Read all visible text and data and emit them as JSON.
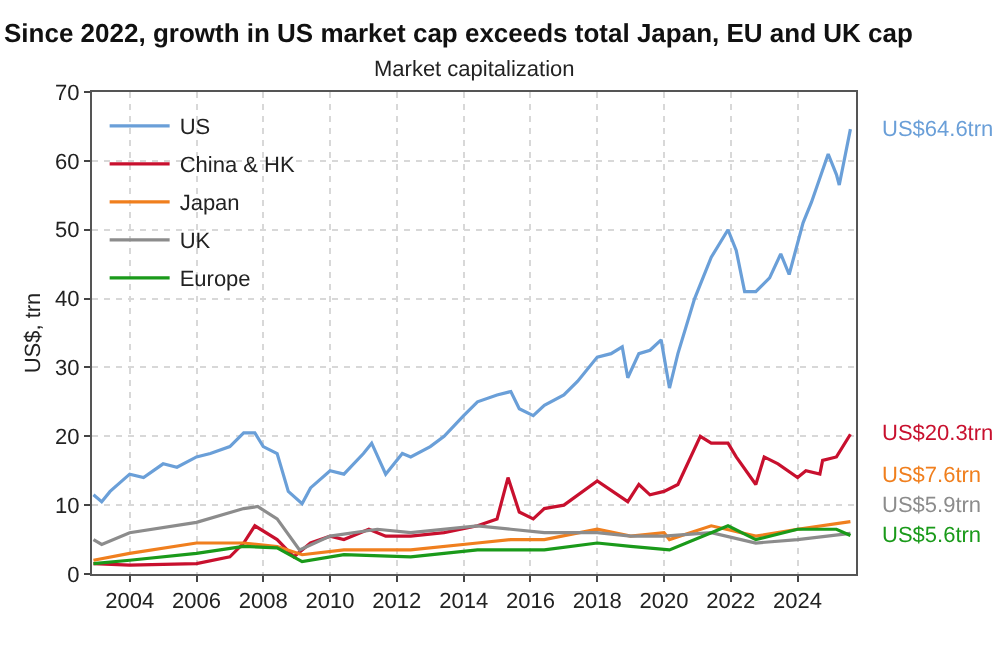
{
  "chart_data": {
    "type": "line",
    "title": "Since 2022, growth in US market cap exceeds total Japan, EU and UK cap",
    "subtitle": "Market capitalization",
    "ylabel": "US$, trn",
    "xlim": [
      "2002-11-15",
      "2025-10-01"
    ],
    "xticks": [
      {
        "value": "2004-01-01",
        "label": "2004"
      },
      {
        "value": "2006-01-01",
        "label": "2006"
      },
      {
        "value": "2008-01-01",
        "label": "2008"
      },
      {
        "value": "2010-01-01",
        "label": "2010"
      },
      {
        "value": "2012-01-01",
        "label": "2012"
      },
      {
        "value": "2014-01-01",
        "label": "2014"
      },
      {
        "value": "2016-01-01",
        "label": "2016"
      },
      {
        "value": "2018-01-01",
        "label": "2018"
      },
      {
        "value": "2020-01-01",
        "label": "2020"
      },
      {
        "value": "2022-01-01",
        "label": "2022"
      },
      {
        "value": "2024-01-01",
        "label": "2024"
      }
    ],
    "ylim": [
      0,
      70
    ],
    "yticks": [
      0,
      10,
      20,
      30,
      40,
      50,
      60,
      70
    ],
    "grid": true,
    "legend": "top left",
    "marker": "none",
    "line_style": "solid",
    "series": [
      {
        "name": "US",
        "color": "#6a9fd8",
        "x": [
          "2002-12",
          "2003-03",
          "2003-06",
          "2004-01",
          "2004-06",
          "2005-01",
          "2005-06",
          "2006-01",
          "2006-06",
          "2007-01",
          "2007-06",
          "2007-10",
          "2008-01",
          "2008-06",
          "2008-10",
          "2009-03",
          "2009-06",
          "2010-01",
          "2010-06",
          "2011-01",
          "2011-04",
          "2011-09",
          "2012-03",
          "2012-06",
          "2013-01",
          "2013-06",
          "2014-01",
          "2014-06",
          "2015-01",
          "2015-06",
          "2015-09",
          "2016-02",
          "2016-06",
          "2017-01",
          "2017-06",
          "2018-01",
          "2018-06",
          "2018-10",
          "2018-12",
          "2019-04",
          "2019-08",
          "2019-12",
          "2020-03",
          "2020-06",
          "2020-12",
          "2021-06",
          "2021-12",
          "2022-03",
          "2022-06",
          "2022-10",
          "2023-03",
          "2023-07",
          "2023-10",
          "2024-03",
          "2024-06",
          "2024-12",
          "2025-03",
          "2025-04",
          "2025-08"
        ],
        "values": [
          11.5,
          10.5,
          12,
          14.5,
          14,
          16,
          15.5,
          17,
          17.5,
          18.5,
          20.5,
          20.5,
          18.5,
          17.5,
          12,
          10.2,
          12.5,
          15,
          14.5,
          17.5,
          19,
          14.5,
          17.5,
          17,
          18.5,
          20,
          23,
          25,
          26,
          26.5,
          24,
          23,
          24.5,
          26,
          28,
          31.5,
          32,
          33,
          28.5,
          32,
          32.5,
          34,
          27,
          32,
          40,
          46,
          50,
          47,
          41,
          41,
          43,
          46.5,
          43.5,
          51,
          54,
          61,
          58,
          56.5,
          64.6
        ]
      },
      {
        "name": "China & HK",
        "color": "#c8102e",
        "x": [
          "2002-12",
          "2004-01",
          "2006-01",
          "2007-01",
          "2007-06",
          "2007-10",
          "2008-06",
          "2008-12",
          "2009-06",
          "2010-01",
          "2010-06",
          "2011-03",
          "2011-09",
          "2012-06",
          "2013-06",
          "2014-06",
          "2015-01",
          "2015-05",
          "2015-09",
          "2016-02",
          "2016-06",
          "2017-01",
          "2018-01",
          "2018-12",
          "2019-04",
          "2019-08",
          "2020-01",
          "2020-06",
          "2021-02",
          "2021-06",
          "2021-12",
          "2022-03",
          "2022-10",
          "2023-01",
          "2023-06",
          "2024-01",
          "2024-04",
          "2024-09",
          "2024-10",
          "2025-03",
          "2025-08"
        ],
        "values": [
          1.5,
          1.3,
          1.5,
          2.5,
          4.5,
          7,
          5,
          2.5,
          4.5,
          5.5,
          5,
          6.5,
          5.5,
          5.5,
          6,
          7,
          8,
          14,
          9,
          8,
          9.5,
          10,
          13.5,
          10.5,
          13,
          11.5,
          12,
          13,
          20,
          19,
          19,
          17,
          13,
          17,
          16,
          14,
          15,
          14.5,
          16.5,
          17,
          20.3
        ]
      },
      {
        "name": "Japan",
        "color": "#f07f1e",
        "x": [
          "2002-12",
          "2004-01",
          "2006-01",
          "2007-06",
          "2008-06",
          "2009-03",
          "2010-06",
          "2012-06",
          "2014-06",
          "2015-06",
          "2016-06",
          "2018-01",
          "2019-01",
          "2020-01",
          "2020-03",
          "2021-06",
          "2022-10",
          "2024-01",
          "2025-08"
        ],
        "values": [
          2,
          3,
          4.5,
          4.5,
          4,
          2.8,
          3.5,
          3.5,
          4.5,
          5,
          5,
          6.5,
          5.5,
          6,
          5,
          7,
          5.5,
          6.5,
          7.6
        ]
      },
      {
        "name": "UK",
        "color": "#8c8c8c",
        "x": [
          "2002-12",
          "2003-03",
          "2004-01",
          "2006-01",
          "2007-06",
          "2007-11",
          "2008-06",
          "2009-02",
          "2010-01",
          "2011-06",
          "2012-06",
          "2014-06",
          "2015-06",
          "2016-06",
          "2018-01",
          "2019-01",
          "2020-01",
          "2021-06",
          "2022-10",
          "2024-01",
          "2025-08"
        ],
        "values": [
          5,
          4.3,
          6,
          7.5,
          9.5,
          9.8,
          8,
          3.5,
          5.5,
          6.5,
          6,
          7,
          6.5,
          6,
          6,
          5.5,
          5.5,
          6,
          4.5,
          5,
          5.9
        ]
      },
      {
        "name": "Europe",
        "color": "#1a9a1a",
        "x": [
          "2002-12",
          "2004-01",
          "2006-01",
          "2007-06",
          "2008-06",
          "2009-03",
          "2010-06",
          "2012-06",
          "2014-06",
          "2016-06",
          "2018-01",
          "2019-01",
          "2020-03",
          "2021-06",
          "2021-12",
          "2022-10",
          "2024-01",
          "2025-03",
          "2025-08"
        ],
        "values": [
          1.5,
          2,
          3,
          4,
          3.8,
          1.8,
          2.8,
          2.5,
          3.5,
          3.5,
          4.5,
          4,
          3.5,
          6,
          7,
          5,
          6.5,
          6.5,
          5.6
        ]
      }
    ],
    "annotations": [
      {
        "text": "US$64.6trn",
        "x": "2025-08",
        "y": 64.6
      },
      {
        "text": "US$20.3trn",
        "x": "2025-08",
        "y": 20.3
      },
      {
        "text": "US$7.6trn",
        "x": "2025-08",
        "y": 7.6
      },
      {
        "text": "US$5.9trn",
        "x": "2025-08",
        "y": 5.9
      },
      {
        "text": "US$5.6trn",
        "x": "2025-08",
        "y": 5.6
      }
    ]
  }
}
